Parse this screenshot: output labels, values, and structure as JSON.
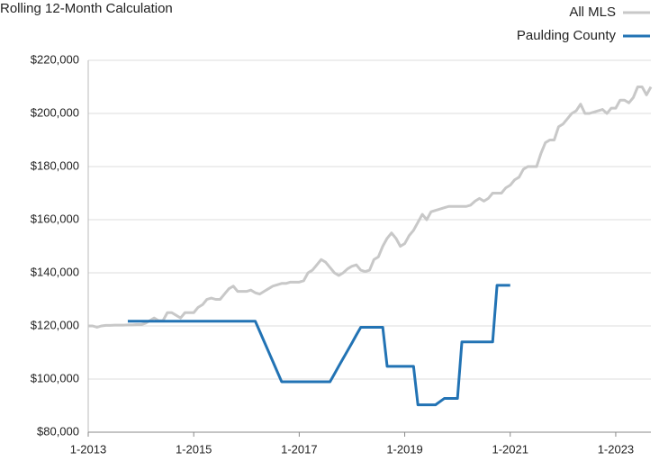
{
  "chart_data": {
    "type": "line",
    "title": "Rolling 12-Month Calculation",
    "x": [
      "1-2013",
      "2-2013",
      "3-2013",
      "4-2013",
      "5-2013",
      "6-2013",
      "7-2013",
      "8-2013",
      "9-2013",
      "10-2013",
      "11-2013",
      "12-2013",
      "1-2014",
      "2-2014",
      "3-2014",
      "4-2014",
      "5-2014",
      "6-2014",
      "7-2014",
      "8-2014",
      "9-2014",
      "10-2014",
      "11-2014",
      "12-2014",
      "1-2015",
      "2-2015",
      "3-2015",
      "4-2015",
      "5-2015",
      "6-2015",
      "7-2015",
      "8-2015",
      "9-2015",
      "10-2015",
      "11-2015",
      "12-2015",
      "1-2016",
      "2-2016",
      "3-2016",
      "4-2016",
      "5-2016",
      "6-2016",
      "7-2016",
      "8-2016",
      "9-2016",
      "10-2016",
      "11-2016",
      "12-2016",
      "1-2017",
      "2-2017",
      "3-2017",
      "4-2017",
      "5-2017",
      "6-2017",
      "7-2017",
      "8-2017",
      "9-2017",
      "10-2017",
      "11-2017",
      "12-2017",
      "1-2018",
      "2-2018",
      "3-2018",
      "4-2018",
      "5-2018",
      "6-2018",
      "7-2018",
      "8-2018",
      "9-2018",
      "10-2018",
      "11-2018",
      "12-2018",
      "1-2019",
      "2-2019",
      "3-2019",
      "4-2019",
      "5-2019",
      "6-2019",
      "7-2019",
      "8-2019",
      "9-2019",
      "10-2019",
      "11-2019",
      "12-2019",
      "1-2020",
      "2-2020",
      "3-2020",
      "4-2020",
      "5-2020",
      "6-2020",
      "7-2020",
      "8-2020",
      "9-2020",
      "10-2020",
      "11-2020",
      "12-2020",
      "1-2021",
      "2-2021",
      "3-2021",
      "4-2021",
      "5-2021",
      "6-2021",
      "7-2021",
      "8-2021",
      "9-2021",
      "10-2021",
      "11-2021",
      "12-2021",
      "1-2022",
      "2-2022",
      "3-2022",
      "4-2022",
      "5-2022",
      "6-2022",
      "7-2022",
      "8-2022",
      "9-2022",
      "10-2022",
      "11-2022",
      "12-2022",
      "1-2023",
      "2-2023",
      "3-2023",
      "4-2023",
      "5-2023",
      "6-2023",
      "7-2023",
      "8-2023",
      "9-2023"
    ],
    "series": [
      {
        "name": "All MLS",
        "color": "#c8c8c8",
        "values": [
          120000,
          120000,
          119500,
          120000,
          120200,
          120200,
          120300,
          120300,
          120300,
          120400,
          120400,
          120500,
          120500,
          121000,
          122000,
          123000,
          122000,
          122000,
          125000,
          125000,
          124000,
          123000,
          125000,
          125000,
          125000,
          127000,
          128000,
          130000,
          130500,
          130000,
          130000,
          132000,
          134000,
          135000,
          133000,
          133000,
          133000,
          133500,
          132500,
          132000,
          133000,
          134000,
          135000,
          135500,
          136000,
          136000,
          136500,
          136500,
          136500,
          137000,
          140000,
          141000,
          143000,
          145000,
          144000,
          142000,
          140000,
          139000,
          140000,
          141500,
          142500,
          143000,
          141000,
          140500,
          141000,
          145000,
          146000,
          150000,
          153000,
          155000,
          153000,
          150000,
          151000,
          154000,
          156000,
          159000,
          162000,
          160000,
          163000,
          163500,
          164000,
          164500,
          165000,
          165000,
          165000,
          165000,
          165000,
          165500,
          167000,
          168000,
          167000,
          168000,
          170000,
          170000,
          170000,
          172000,
          173000,
          175000,
          176000,
          179000,
          180000,
          180000,
          180000,
          185000,
          189000,
          190000,
          190000,
          195000,
          196000,
          198000,
          200000,
          201000,
          203500,
          200000,
          200000,
          200500,
          201000,
          201500,
          200000,
          202000,
          202000,
          205000,
          205000,
          204000,
          206000,
          210000,
          210000,
          207000,
          210000
        ]
      },
      {
        "name": "Paulding County",
        "color": "#2273b4",
        "values": [
          null,
          null,
          null,
          null,
          null,
          null,
          null,
          null,
          null,
          121800,
          121800,
          121800,
          121800,
          121800,
          121800,
          121800,
          121800,
          121800,
          121800,
          121800,
          121800,
          121800,
          121800,
          121800,
          121800,
          121800,
          121800,
          121800,
          121800,
          121800,
          121800,
          121800,
          121800,
          121800,
          121800,
          121800,
          121800,
          121800,
          121800,
          118000,
          114200,
          110400,
          106600,
          102800,
          99000,
          99000,
          99000,
          99000,
          99000,
          99000,
          99000,
          99000,
          99000,
          99000,
          99000,
          99000,
          101900,
          104900,
          107800,
          110700,
          113600,
          116600,
          119500,
          119500,
          119500,
          119500,
          119500,
          119500,
          104800,
          104800,
          104800,
          104800,
          104800,
          104800,
          104800,
          90300,
          90300,
          90300,
          90300,
          90300,
          91500,
          92700,
          92700,
          92700,
          92700,
          114000,
          114000,
          114000,
          114000,
          114000,
          114000,
          114000,
          114000,
          135300,
          135300,
          135300,
          135300,
          null,
          null,
          null,
          null,
          null,
          null,
          null,
          null,
          null,
          null,
          null,
          null,
          null,
          null,
          null,
          null,
          null,
          null,
          null,
          null,
          null,
          null,
          null,
          null,
          null,
          null,
          null,
          null,
          null,
          null,
          null,
          null
        ]
      }
    ],
    "ylim": [
      80000,
      220000
    ],
    "yticks": [
      {
        "value": 80000,
        "label": "$80,000"
      },
      {
        "value": 100000,
        "label": "$100,000"
      },
      {
        "value": 120000,
        "label": "$120,000"
      },
      {
        "value": 140000,
        "label": "$140,000"
      },
      {
        "value": 160000,
        "label": "$160,000"
      },
      {
        "value": 180000,
        "label": "$180,000"
      },
      {
        "value": 200000,
        "label": "$200,000"
      },
      {
        "value": 220000,
        "label": "$220,000"
      }
    ],
    "xticks": [
      "1-2013",
      "1-2015",
      "1-2017",
      "1-2019",
      "1-2021",
      "1-2023"
    ],
    "grid": true,
    "legend": "top-right"
  }
}
